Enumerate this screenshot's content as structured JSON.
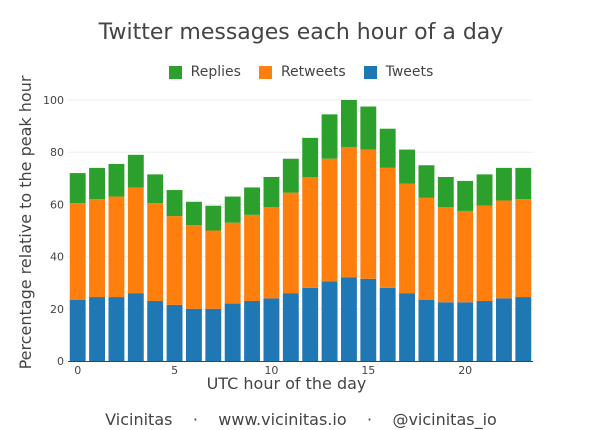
{
  "chart_data": {
    "type": "bar",
    "stacked": true,
    "title": "Twitter messages each hour of a day",
    "xlabel": "UTC hour of the day",
    "ylabel": "Percentage relative to the peak hour",
    "x": [
      0,
      1,
      2,
      3,
      4,
      5,
      6,
      7,
      8,
      9,
      10,
      11,
      12,
      13,
      14,
      15,
      16,
      17,
      18,
      19,
      20,
      21,
      22,
      23
    ],
    "xticks": [
      0,
      5,
      10,
      15,
      20
    ],
    "ylim": [
      0,
      100
    ],
    "yticks": [
      0,
      20,
      40,
      60,
      80,
      100
    ],
    "grid": true,
    "legend_position": "top",
    "series": [
      {
        "name": "Tweets",
        "color": "#1f77b4",
        "values": [
          23.5,
          24.5,
          24.5,
          26,
          23,
          21.5,
          20,
          20,
          22,
          23,
          24,
          26,
          28,
          30.5,
          32,
          31.5,
          28,
          26,
          23.5,
          22.5,
          22.5,
          23,
          24,
          24.5
        ]
      },
      {
        "name": "Retweets",
        "color": "#ff7f0e",
        "values": [
          37,
          37.5,
          38.5,
          40.5,
          37.5,
          34,
          32,
          30,
          31,
          33,
          35,
          38.5,
          42.5,
          47,
          50,
          49.5,
          46,
          42,
          39,
          36.5,
          35,
          36.5,
          37.5,
          37.5
        ]
      },
      {
        "name": "Replies",
        "color": "#2ca02c",
        "values": [
          11.5,
          12,
          12.5,
          12.5,
          11,
          10,
          9,
          9.5,
          10,
          10.5,
          11.5,
          13,
          15,
          17,
          18,
          16.5,
          15,
          13,
          12.5,
          11.5,
          11.5,
          12,
          12.5,
          12
        ]
      }
    ],
    "legend_order": [
      "Replies",
      "Retweets",
      "Tweets"
    ]
  },
  "footer": {
    "brand": "Vicinitas",
    "separator": "·",
    "website": "www.vicinitas.io",
    "handle": "@vicinitas_io"
  }
}
